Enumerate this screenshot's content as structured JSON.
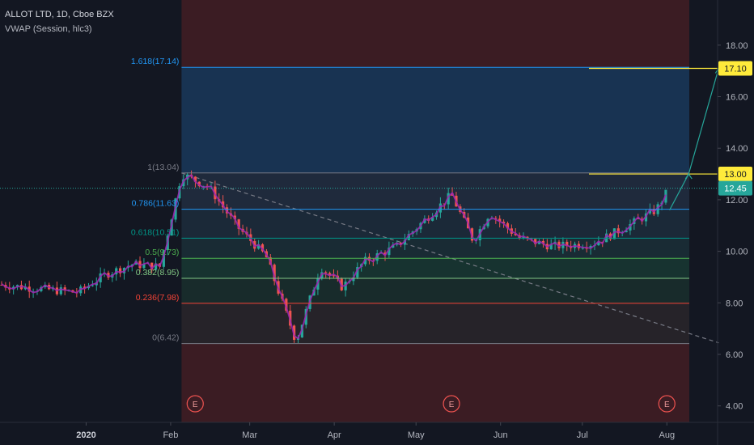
{
  "header": {
    "title": "ALLOT LTD, 1D, Cboe BZX",
    "indicator": "VWAP (Session, hlc3)"
  },
  "colors": {
    "background": "#131722",
    "axis_text": "#b2b5be",
    "bull": "#26a69a",
    "bear": "#ef5350",
    "vwap": "#9c27b0",
    "target_line": "#ffeb3b",
    "price_badge": "#26a69a",
    "fib_blue": "#2196f3",
    "fib_red": "#f44336"
  },
  "chart_data": {
    "type": "line",
    "title": "ALLOT LTD, 1D, Cboe BZX",
    "xlabel": "",
    "ylabel": "",
    "x_ticks": [
      "2020",
      "Feb",
      "Mar",
      "Apr",
      "May",
      "Jun",
      "Jul",
      "Aug"
    ],
    "y_ticks": [
      "4.00",
      "6.00",
      "8.00",
      "10.00",
      "12.00",
      "14.00",
      "16.00",
      "18.00"
    ],
    "ylim": [
      3.4,
      19.2
    ],
    "grid": false,
    "x_start": "2019-12-01",
    "price_path": [
      [
        "2019-12-01",
        8.7
      ],
      [
        "2019-12-15",
        8.55
      ],
      [
        "2019-12-29",
        8.4
      ],
      [
        "2020-01-08",
        9.1
      ],
      [
        "2020-01-18",
        9.5
      ],
      [
        "2020-01-28",
        9.4
      ],
      [
        "2020-02-05",
        13.0
      ],
      [
        "2020-02-15",
        12.5
      ],
      [
        "2020-02-25",
        11.0
      ],
      [
        "2020-03-07",
        9.8
      ],
      [
        "2020-03-18",
        6.5
      ],
      [
        "2020-03-27",
        9.4
      ],
      [
        "2020-04-04",
        8.6
      ],
      [
        "2020-04-12",
        9.6
      ],
      [
        "2020-04-24",
        10.2
      ],
      [
        "2020-05-06",
        11.4
      ],
      [
        "2020-05-14",
        12.2
      ],
      [
        "2020-05-22",
        10.4
      ],
      [
        "2020-05-28",
        11.5
      ],
      [
        "2020-06-08",
        10.5
      ],
      [
        "2020-06-20",
        10.2
      ],
      [
        "2020-07-05",
        10.3
      ],
      [
        "2020-07-18",
        11.0
      ],
      [
        "2020-07-28",
        11.6
      ],
      [
        "2020-08-01",
        12.3
      ]
    ],
    "fib_levels": [
      {
        "label": "1.618(17.14)",
        "value": 17.14,
        "color": "#2196f3"
      },
      {
        "label": "1(13.04)",
        "value": 13.04,
        "color": "#787b86"
      },
      {
        "label": "0.786(11.63)",
        "value": 11.63,
        "color": "#2196f3"
      },
      {
        "label": "0.618(10.51)",
        "value": 10.51,
        "color": "#009688"
      },
      {
        "label": "0.5(9.73)",
        "value": 9.73,
        "color": "#4caf50"
      },
      {
        "label": "0.382(8.95)",
        "value": 8.95,
        "color": "#81c784"
      },
      {
        "label": "0.236(7.98)",
        "value": 7.98,
        "color": "#f44336"
      },
      {
        "label": "0(6.42)",
        "value": 6.42,
        "color": "#787b86"
      }
    ],
    "price_labels": [
      {
        "text": "17.10",
        "value": 17.1,
        "kind": "target"
      },
      {
        "text": "13.00",
        "value": 13.0,
        "kind": "target"
      },
      {
        "text": "12.45",
        "value": 12.45,
        "kind": "last"
      }
    ],
    "earnings_markers": [
      {
        "label": "E",
        "date": "2020-02-10"
      },
      {
        "label": "E",
        "date": "2020-05-14"
      },
      {
        "label": "E",
        "date": "2020-08-01"
      }
    ],
    "trendline": {
      "from": [
        "2020-02-05",
        13.04
      ],
      "to": [
        "2020-08-20",
        6.45
      ]
    },
    "projection": [
      [
        "2020-08-02",
        11.6
      ],
      [
        "2020-08-09",
        13.0
      ],
      [
        "2020-08-20",
        17.1
      ]
    ]
  }
}
